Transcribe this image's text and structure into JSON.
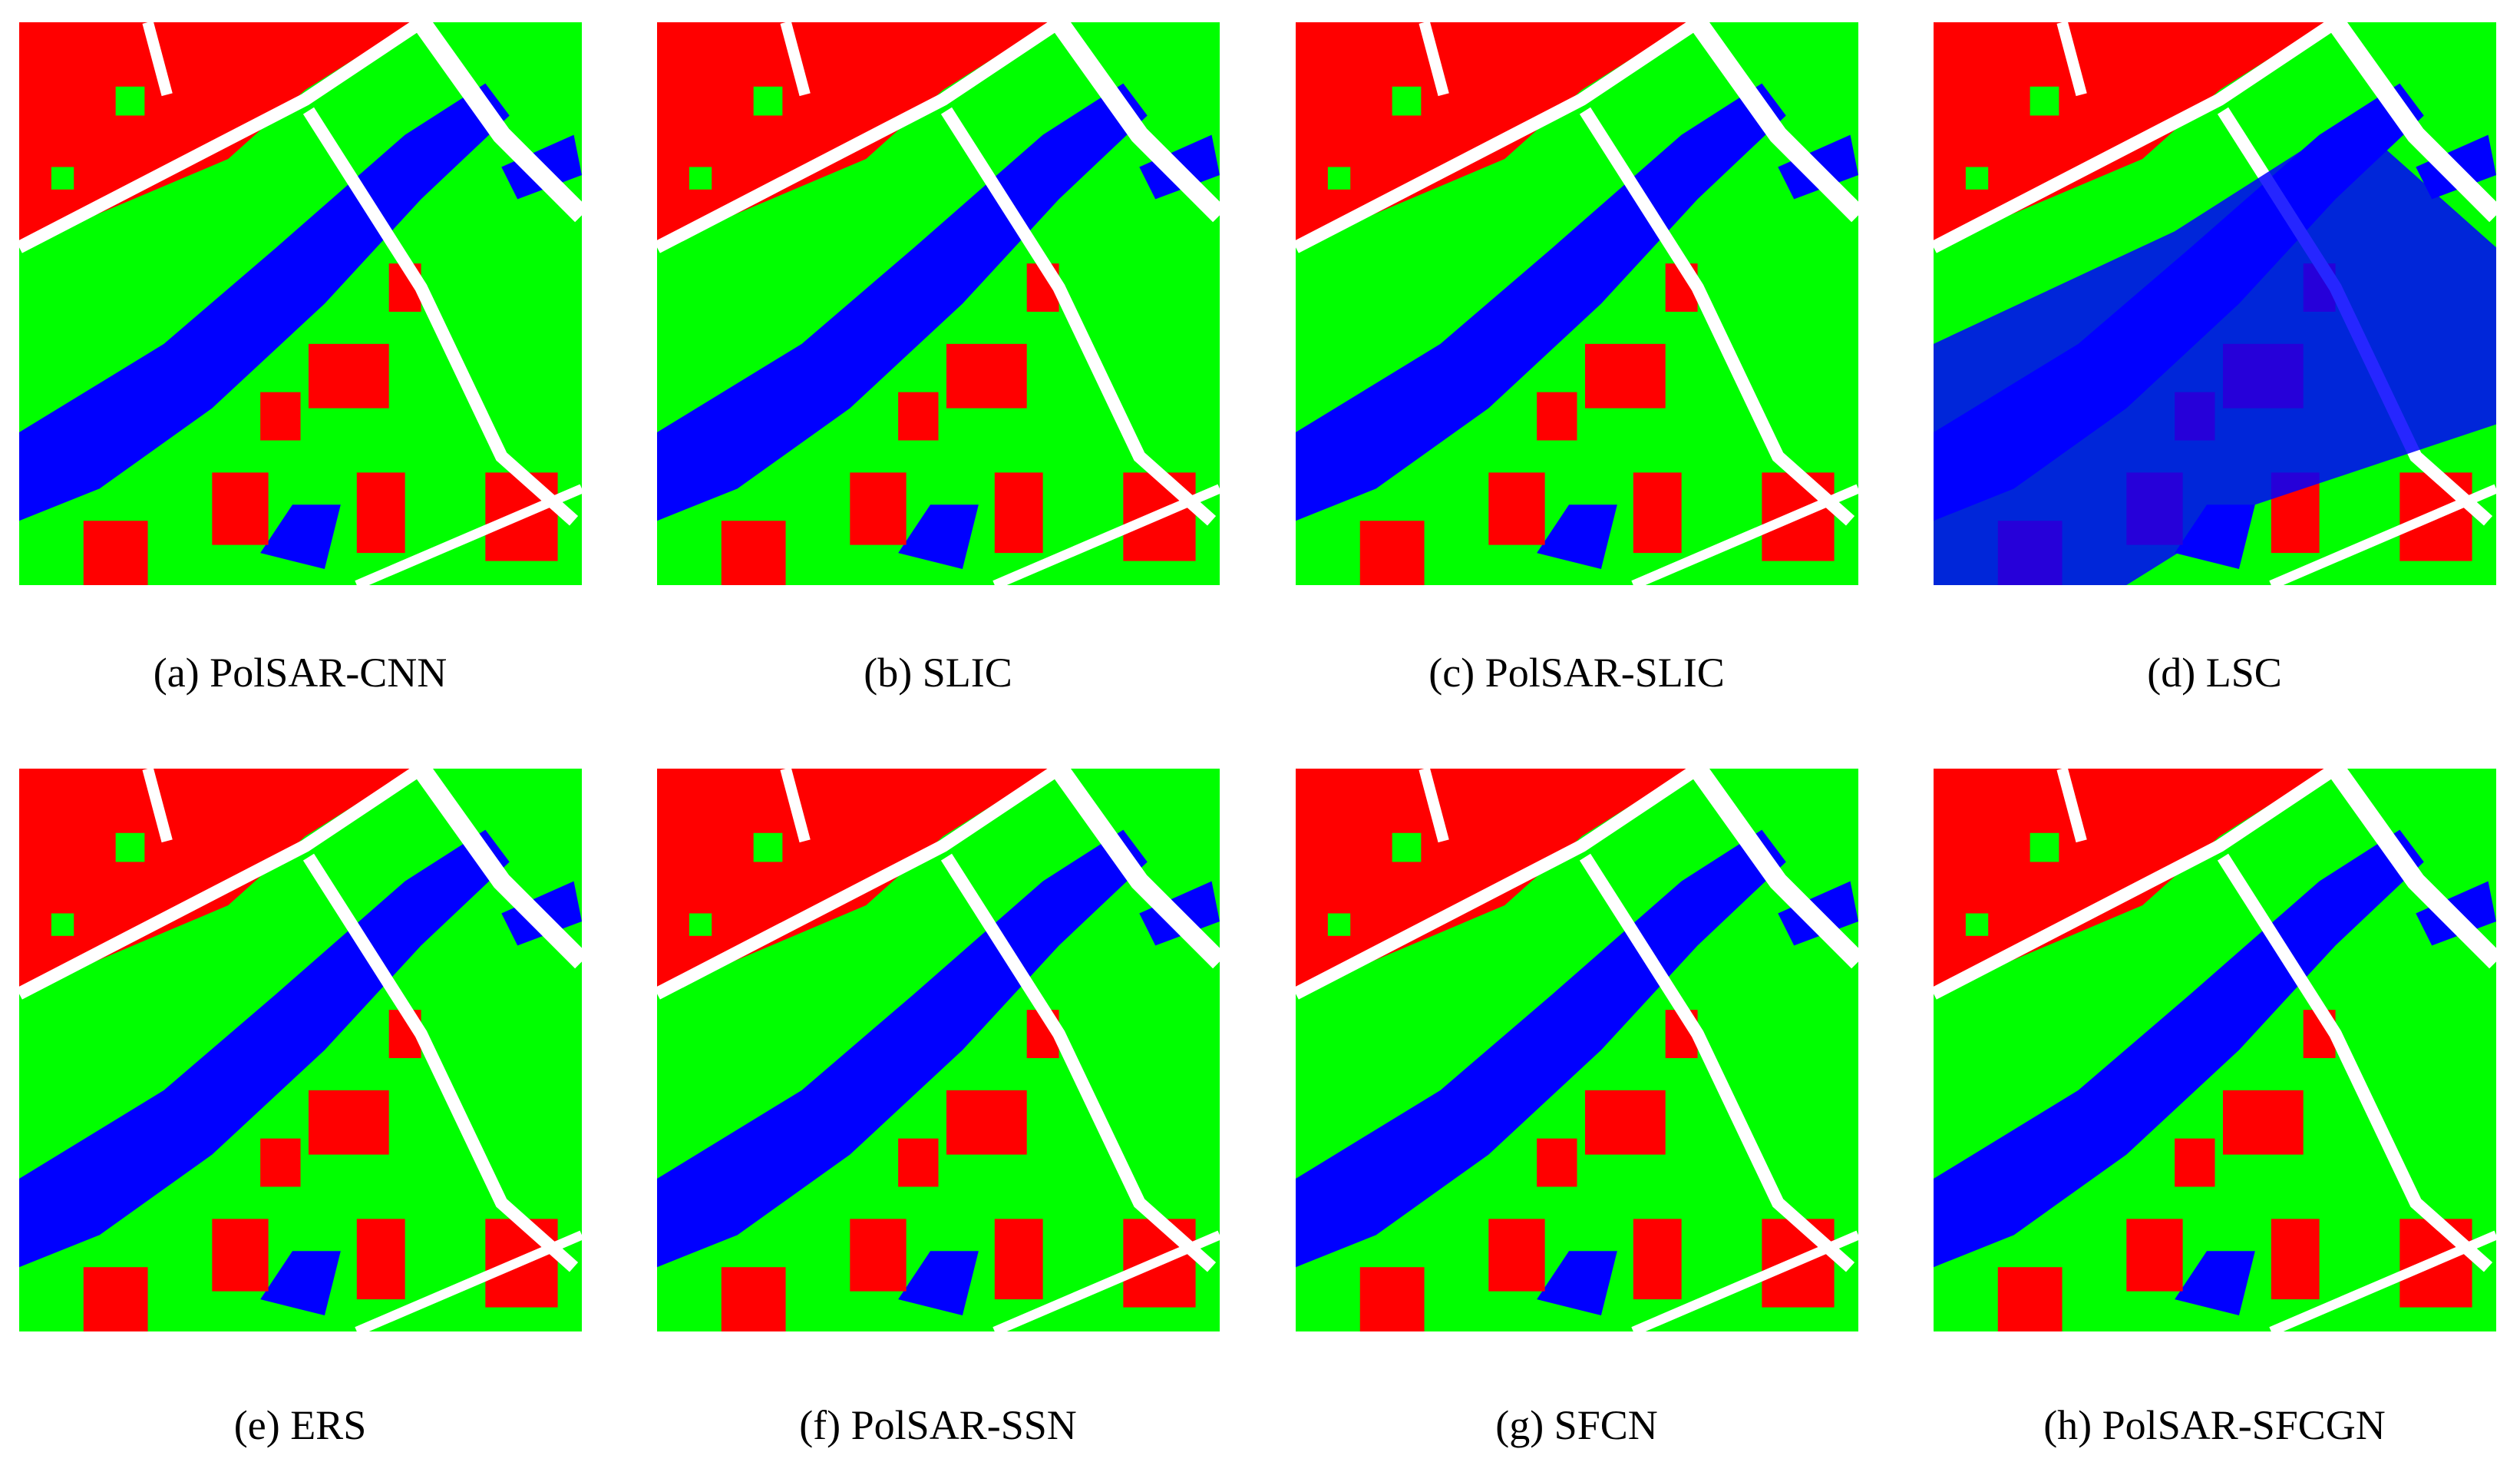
{
  "panels": [
    {
      "caption": "(a) PolSAR-CNN"
    },
    {
      "caption": "(b) SLIC"
    },
    {
      "caption": "(c) PolSAR-SLIC"
    },
    {
      "caption": "(d) LSC"
    },
    {
      "caption": "(e) ERS"
    },
    {
      "caption": "(f) PolSAR-SSN"
    },
    {
      "caption": "(g) SFCN"
    },
    {
      "caption": "(h) PolSAR-SFCGN"
    }
  ]
}
